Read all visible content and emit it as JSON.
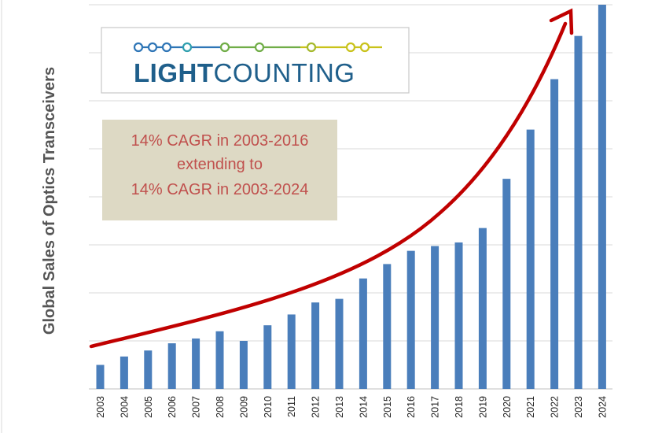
{
  "chart_data": {
    "type": "bar",
    "ylabel": "Global Sales of Optics Transceivers",
    "xlabel": "",
    "categories": [
      "2003",
      "2004",
      "2005",
      "2006",
      "2007",
      "2008",
      "2009",
      "2010",
      "2011",
      "2012",
      "2013",
      "2014",
      "2015",
      "2016",
      "2017",
      "2018",
      "2019",
      "2020",
      "2021",
      "2022",
      "2023",
      "2024"
    ],
    "values": [
      1.0,
      1.35,
      1.6,
      1.9,
      2.1,
      2.4,
      2.0,
      2.65,
      3.1,
      3.6,
      3.75,
      4.6,
      5.2,
      5.75,
      5.95,
      6.1,
      6.7,
      8.75,
      10.8,
      12.9,
      14.7,
      16.0
    ],
    "ylim": [
      0,
      16
    ],
    "y_gridlines": [
      2,
      4,
      6,
      8,
      10,
      12,
      14,
      16
    ],
    "y_tick_labels": false,
    "grid": true,
    "bar_color": "#4a7ebb",
    "trend_arrow_color": "#c00000",
    "annotation": {
      "lines": [
        "14% CAGR in 2003-2016",
        "extending to",
        "14% CAGR in 2003-2024"
      ],
      "text_color": "#c0504d",
      "background": "#ddd9c4"
    },
    "logo": {
      "bold_part": "LIGHT",
      "light_part": "COUNTING",
      "text_color": "#1f5f8b"
    }
  }
}
